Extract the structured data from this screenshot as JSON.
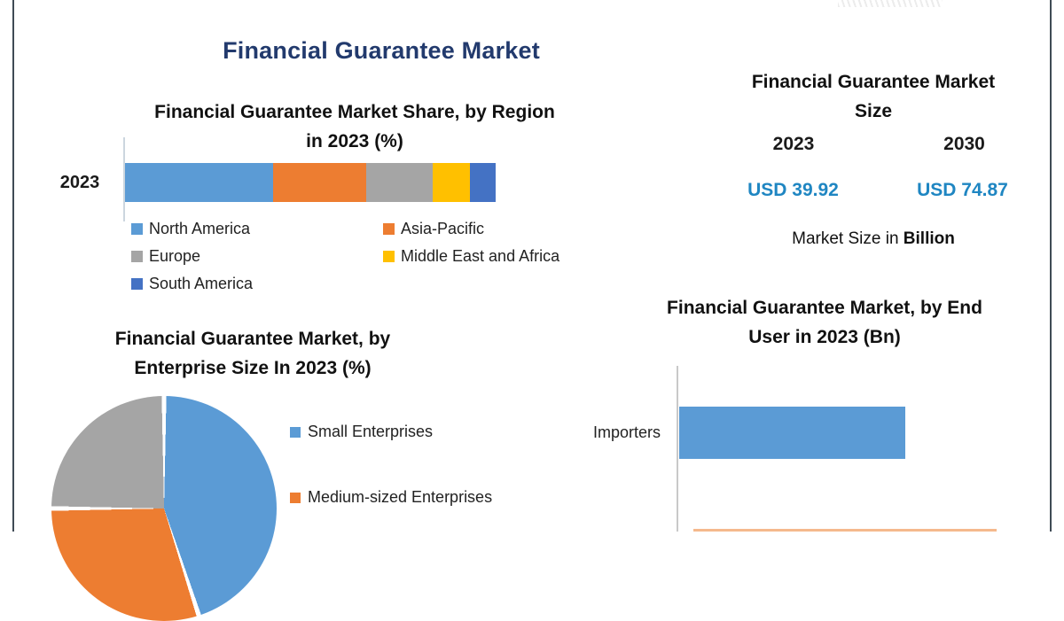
{
  "main_title": "Financial Guarantee Market",
  "colors": {
    "title_navy": "#223a6d",
    "usd_blue": "#1f86c2",
    "series_blue": "#5B9BD5",
    "series_orange": "#ED7D31",
    "series_gray": "#A5A5A5",
    "series_yellow": "#FFC000",
    "series_dark_blue": "#4472C4",
    "frame_line": "#3f4b55",
    "partial_bar_orange": "#f3ad79"
  },
  "region_chart": {
    "title_line1": "Financial Guarantee Market Share, by Region",
    "title_line2": "in 2023 (%)",
    "axis_label": "2023"
  },
  "market_size_panel": {
    "title_line1": "Financial Guarantee Market",
    "title_line2": "Size",
    "year_left": "2023",
    "year_right": "2030",
    "value_left": "USD 39.92",
    "value_right": "USD 74.87",
    "caption_text": "Market Size in ",
    "caption_bold": "Billion"
  },
  "enterprise_chart": {
    "title_line1": "Financial Guarantee Market, by",
    "title_line2": "Enterprise Size In 2023 (%)"
  },
  "end_user_chart": {
    "title_line1": "Financial Guarantee Market, by End",
    "title_line2": "User in 2023 (Bn)",
    "category_label": "Importers"
  },
  "chart_data": [
    {
      "id": "region_share",
      "type": "bar",
      "variant": "horizontal-stacked",
      "title": "Financial Guarantee Market Share, by Region in 2023 (%)",
      "categories": [
        "2023"
      ],
      "series": [
        {
          "name": "North America",
          "values": [
            40
          ],
          "color": "#5B9BD5"
        },
        {
          "name": "Asia-Pacific",
          "values": [
            25
          ],
          "color": "#ED7D31"
        },
        {
          "name": "Europe",
          "values": [
            18
          ],
          "color": "#A5A5A5"
        },
        {
          "name": "Middle East and Africa",
          "values": [
            10
          ],
          "color": "#FFC000"
        },
        {
          "name": "South America",
          "values": [
            7
          ],
          "color": "#4472C4"
        }
      ],
      "unit": "%",
      "legend_position": "bottom",
      "note": "No data labels shown; segment percentages estimated from bar proportions."
    },
    {
      "id": "enterprise_size",
      "type": "pie",
      "title": "Financial Guarantee Market, by Enterprise Size In 2023 (%)",
      "slices": [
        {
          "label": "Small Enterprises",
          "value": 45,
          "color": "#5B9BD5"
        },
        {
          "label": "Medium-sized Enterprises",
          "value": 30,
          "color": "#ED7D31"
        },
        {
          "label": null,
          "value": 25,
          "color": "#A5A5A5"
        }
      ],
      "unit": "%",
      "legend_position": "right",
      "note": "Pie and third legend entry cut off at bottom edge; values estimated from slice angles."
    },
    {
      "id": "end_user",
      "type": "bar",
      "variant": "horizontal",
      "title": "Financial Guarantee Market, by End User in 2023 (Bn)",
      "categories": [
        "Importers"
      ],
      "values": [
        null
      ],
      "bar_color": "#5B9BD5",
      "note": "No value axis or data labels visible; a second orange bar is cut off at the bottom edge."
    }
  ]
}
